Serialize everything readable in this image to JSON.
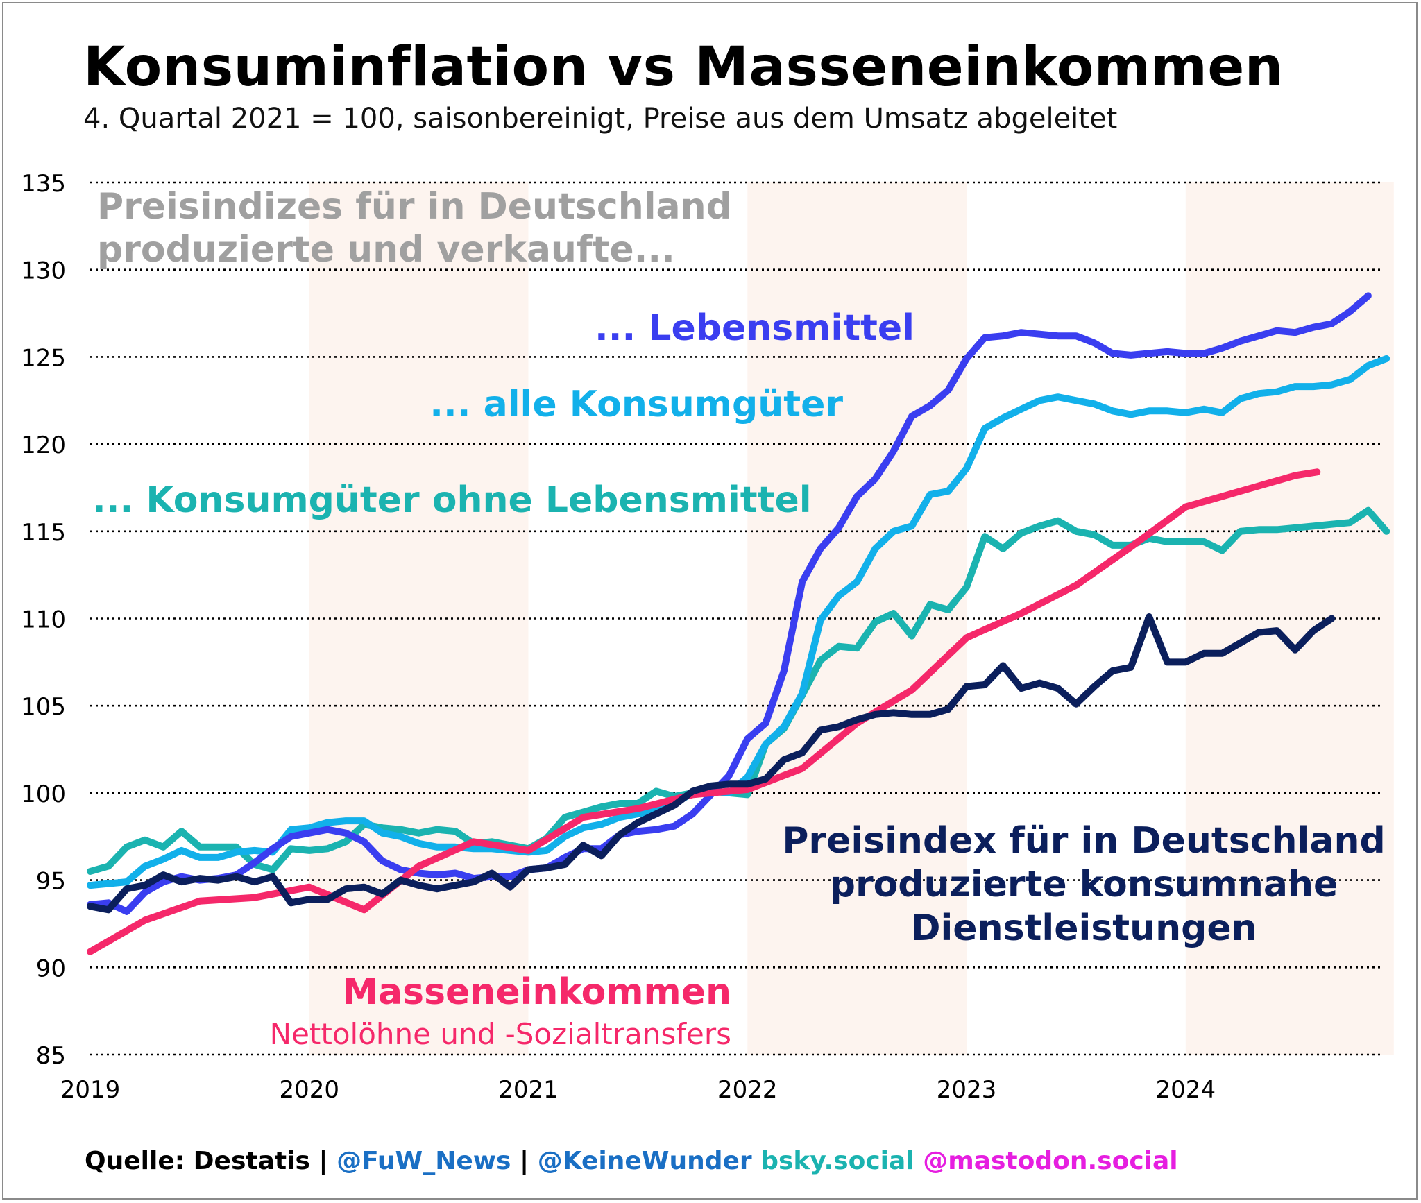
{
  "header": {
    "title": "Konsuminflation vs Masseneinkommen",
    "subtitle": "4. Quartal 2021 = 100, saisonbereinigt, Preise aus dem Umsatz abgeleitet"
  },
  "source": {
    "prefix": "Quelle: Destatis | ",
    "twitter": "@FuW_News",
    "sep": " | ",
    "handle": "@KeineWunder",
    "bsky": " bsky.social",
    "mastodon": " @mastodon.social"
  },
  "colors": {
    "lebensmittel": "#3a3ef0",
    "alle_konsumgueter": "#12b0ea",
    "ohne_lebensmittel": "#1bb3b0",
    "masseneinkommen": "#f5286a",
    "dienstleistungen": "#0b1f5c",
    "annotation_gray": "#a0a0a0",
    "shade": "#fdf4ef",
    "source_blue": "#1a6fc4",
    "source_teal": "#1bb3b0",
    "source_magenta": "#e61ee0"
  },
  "chart_data": {
    "type": "line",
    "title": "Konsuminflation vs Masseneinkommen",
    "subtitle": "4. Quartal 2021 = 100, saisonbereinigt, Preise aus dem Umsatz abgeleitet",
    "xlabel": "",
    "ylabel": "",
    "xlim": [
      2019.0,
      2024.95
    ],
    "ylim": [
      85,
      135
    ],
    "yticks": [
      85,
      90,
      95,
      100,
      105,
      110,
      115,
      120,
      125,
      130,
      135
    ],
    "ytick_labels": [
      "85",
      "90",
      "95",
      "100",
      "105",
      "110",
      "115",
      "120",
      "125",
      "130",
      "135"
    ],
    "xticks": [
      2019,
      2020,
      2021,
      2022,
      2023,
      2024
    ],
    "xtick_labels": [
      "2019",
      "2020",
      "2021",
      "2022",
      "2023",
      "2024"
    ],
    "grid": "horizontal dotted",
    "shaded_years": [
      [
        2020,
        2021
      ],
      [
        2022,
        2023
      ],
      [
        2024,
        2024.95
      ]
    ],
    "annotations": [
      {
        "id": "header",
        "lines": [
          "Preisindizes für in Deutschland",
          "produzierte und verkaufte..."
        ],
        "color_key": "annotation_gray"
      },
      {
        "id": "lebensmittel",
        "lines": [
          "... Lebensmittel"
        ],
        "color_key": "lebensmittel"
      },
      {
        "id": "alle",
        "lines": [
          "... alle Konsumgüter"
        ],
        "color_key": "alle_konsumgueter"
      },
      {
        "id": "ohne",
        "lines": [
          "... Konsumgüter ohne Lebensmittel"
        ],
        "color_key": "ohne_lebensmittel"
      },
      {
        "id": "dienst",
        "lines": [
          "Preisindex für in Deutschland",
          "produzierte konsumnahe",
          "Dienstleistungen"
        ],
        "color_key": "dienstleistungen"
      },
      {
        "id": "masse",
        "lines": [
          "Masseneinkommen"
        ],
        "color_key": "masseneinkommen"
      },
      {
        "id": "masse_sub",
        "lines": [
          "Nettolöhne und -Sozialtransfers"
        ],
        "color_key": "masseneinkommen"
      }
    ],
    "series": [
      {
        "name": "Konsumgüter ohne Lebensmittel",
        "color_key": "ohne_lebensmittel",
        "x_start": 2019.0,
        "x_step": 0.08333,
        "values": [
          95.5,
          95.8,
          96.9,
          97.3,
          96.9,
          97.8,
          96.9,
          96.9,
          96.9,
          95.9,
          95.6,
          96.8,
          96.7,
          96.8,
          97.2,
          98.2,
          98.0,
          97.9,
          97.7,
          97.9,
          97.8,
          97.1,
          97.2,
          97.0,
          96.8,
          97.4,
          98.6,
          98.9,
          99.2,
          99.4,
          99.4,
          100.1,
          99.8,
          100.0,
          100.1,
          100.0,
          99.9,
          102.8,
          103.7,
          105.6,
          107.6,
          108.4,
          108.3,
          109.8,
          110.3,
          109.0,
          110.8,
          110.5,
          111.8,
          114.7,
          114.0,
          114.9,
          115.3,
          115.6,
          115.0,
          114.8,
          114.2,
          114.2,
          114.6,
          114.4,
          114.4,
          114.4,
          113.9,
          115.0,
          115.1,
          115.1,
          115.2,
          115.3,
          115.4,
          115.5,
          116.2,
          115.0
        ]
      },
      {
        "name": "alle Konsumgüter",
        "color_key": "alle_konsumgueter",
        "x_start": 2019.0,
        "x_step": 0.08333,
        "values": [
          94.7,
          94.8,
          94.9,
          95.8,
          96.2,
          96.7,
          96.3,
          96.3,
          96.6,
          96.7,
          96.6,
          97.9,
          98.0,
          98.3,
          98.4,
          98.4,
          97.7,
          97.5,
          97.1,
          96.9,
          96.9,
          96.8,
          96.8,
          96.7,
          96.6,
          96.7,
          97.5,
          98.0,
          98.2,
          98.6,
          98.8,
          99.0,
          99.4,
          100.0,
          100.1,
          100.0,
          100.9,
          102.8,
          103.8,
          105.7,
          109.9,
          111.3,
          112.1,
          114.0,
          115.0,
          115.3,
          117.1,
          117.3,
          118.6,
          120.9,
          121.5,
          122.0,
          122.5,
          122.7,
          122.5,
          122.3,
          121.9,
          121.7,
          121.9,
          121.9,
          121.8,
          122.0,
          121.8,
          122.6,
          122.9,
          123.0,
          123.3,
          123.3,
          123.4,
          123.7,
          124.5,
          124.9
        ]
      },
      {
        "name": "Lebensmittel",
        "color_key": "lebensmittel",
        "x_start": 2019.0,
        "x_step": 0.08333,
        "values": [
          93.6,
          93.7,
          93.2,
          94.3,
          94.9,
          95.2,
          95.0,
          95.1,
          95.3,
          96.0,
          96.8,
          97.5,
          97.7,
          97.9,
          97.7,
          97.2,
          96.1,
          95.6,
          95.4,
          95.3,
          95.4,
          95.1,
          95.2,
          95.2,
          95.6,
          95.7,
          96.3,
          96.8,
          96.8,
          97.6,
          97.8,
          97.9,
          98.1,
          98.8,
          99.9,
          101.0,
          103.1,
          104.0,
          107.0,
          112.1,
          114.0,
          115.2,
          117.0,
          118.0,
          119.6,
          121.6,
          122.2,
          123.1,
          124.9,
          126.1,
          126.2,
          126.4,
          126.3,
          126.2,
          126.2,
          125.8,
          125.2,
          125.1,
          125.2,
          125.3,
          125.2,
          125.2,
          125.5,
          125.9,
          126.2,
          126.5,
          126.4,
          126.7,
          126.9,
          127.6,
          128.5
        ]
      },
      {
        "name": "Masseneinkommen",
        "color_key": "masseneinkommen",
        "x_points": [
          2019.0,
          2019.25,
          2019.5,
          2019.75,
          2020.0,
          2020.25,
          2020.5,
          2020.75,
          2021.0,
          2021.25,
          2021.5,
          2021.75,
          2022.0,
          2022.25,
          2022.5,
          2022.75,
          2023.0,
          2023.25,
          2023.5,
          2023.75,
          2024.0,
          2024.25,
          2024.5,
          2024.6
        ],
        "values": [
          90.9,
          92.7,
          93.8,
          94.0,
          94.6,
          93.3,
          95.8,
          97.2,
          96.7,
          98.6,
          99.1,
          99.9,
          100.2,
          101.4,
          104.0,
          105.9,
          108.9,
          110.3,
          111.9,
          114.1,
          116.4,
          117.3,
          118.2,
          118.4
        ]
      },
      {
        "name": "Preisindex konsumnahe Dienstleistungen",
        "color_key": "dienstleistungen",
        "x_start": 2019.0,
        "x_step": 0.08333,
        "values": [
          93.5,
          93.3,
          94.5,
          94.7,
          95.3,
          94.9,
          95.1,
          95.0,
          95.2,
          94.9,
          95.2,
          93.7,
          93.9,
          93.9,
          94.5,
          94.6,
          94.2,
          95.0,
          94.7,
          94.5,
          94.7,
          94.9,
          95.4,
          94.6,
          95.6,
          95.7,
          95.9,
          97.0,
          96.4,
          97.6,
          98.3,
          98.8,
          99.3,
          100.1,
          100.4,
          100.5,
          100.5,
          100.8,
          101.9,
          102.3,
          103.6,
          103.8,
          104.2,
          104.5,
          104.6,
          104.5,
          104.5,
          104.8,
          106.1,
          106.2,
          107.3,
          106.0,
          106.3,
          106.0,
          105.1,
          106.1,
          107.0,
          107.2,
          110.1,
          107.5,
          107.5,
          108.0,
          108.0,
          108.6,
          109.2,
          109.3,
          108.2,
          109.3,
          110.0
        ]
      }
    ]
  }
}
